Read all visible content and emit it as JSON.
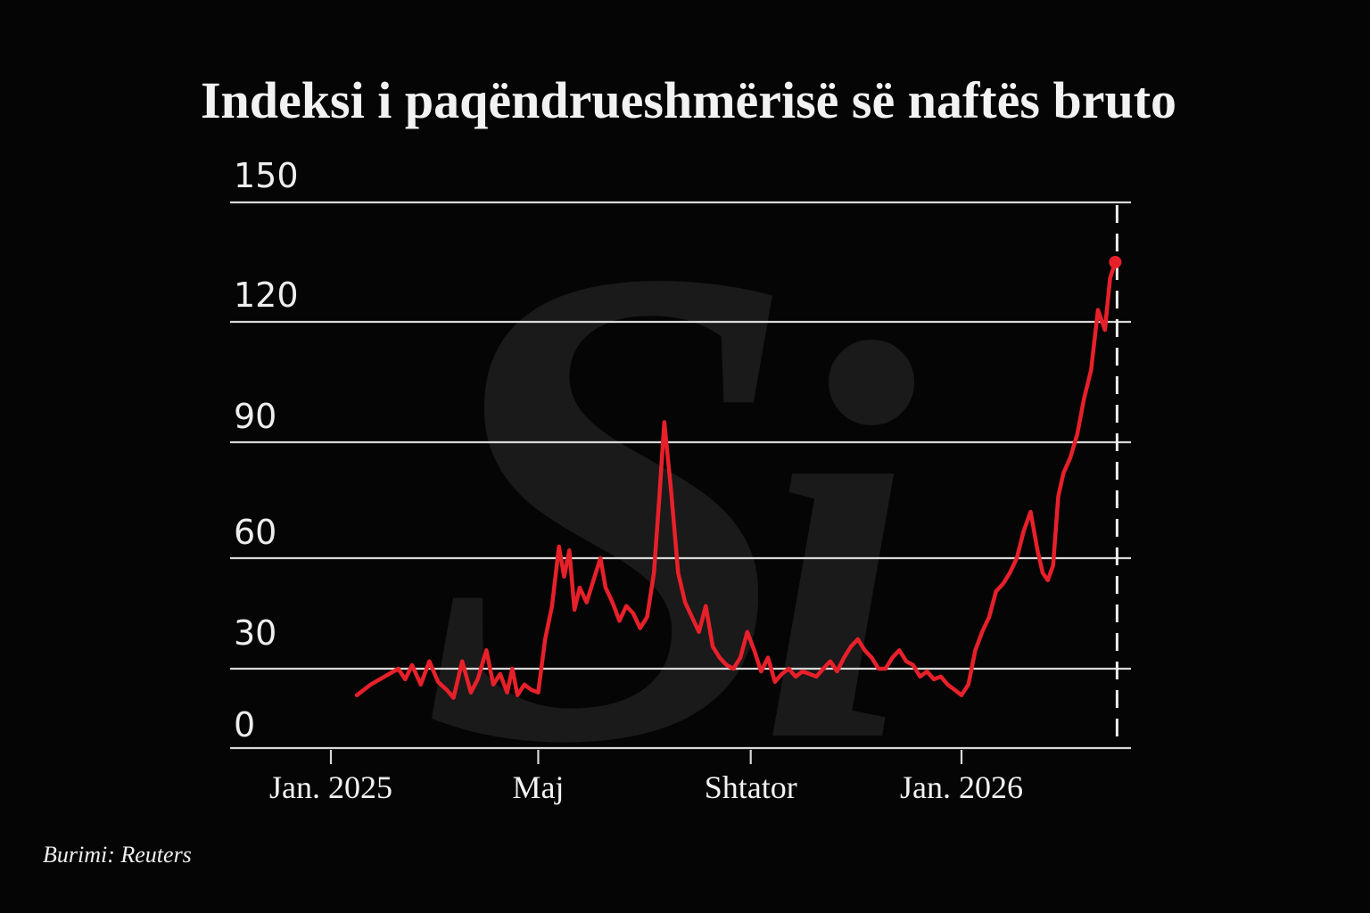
{
  "chart_data": {
    "type": "line",
    "title": "Indeksi i paqëndrueshmërisë së naftës bruto",
    "xlabel": "",
    "ylabel": "",
    "ylim": [
      0,
      150
    ],
    "yticks": [
      "150",
      "120",
      "90",
      "60",
      "30",
      "0"
    ],
    "xticks": [
      {
        "label": "Jan. 2025",
        "date": "2025-01-01"
      },
      {
        "label": "Maj",
        "date": "2025-05-01"
      },
      {
        "label": "Shtator",
        "date": "2025-09-01"
      },
      {
        "label": "Jan. 2026",
        "date": "2026-01-01"
      }
    ],
    "grid": true,
    "legend": "none",
    "line_color": "#e8202a",
    "marker_date": "2026-03-31",
    "series": [
      {
        "points": [
          [
            "2025-01-16",
            20
          ],
          [
            "2025-01-24",
            24
          ],
          [
            "2025-02-01",
            27
          ],
          [
            "2025-02-09",
            30
          ],
          [
            "2025-02-13",
            26
          ],
          [
            "2025-02-17",
            31
          ],
          [
            "2025-02-22",
            24
          ],
          [
            "2025-02-27",
            32
          ],
          [
            "2025-03-04",
            25
          ],
          [
            "2025-03-09",
            22
          ],
          [
            "2025-03-13",
            19
          ],
          [
            "2025-03-18",
            32
          ],
          [
            "2025-03-23",
            21
          ],
          [
            "2025-03-27",
            26
          ],
          [
            "2025-04-01",
            35
          ],
          [
            "2025-04-05",
            24
          ],
          [
            "2025-04-09",
            28
          ],
          [
            "2025-04-13",
            21
          ],
          [
            "2025-04-16",
            30
          ],
          [
            "2025-04-19",
            20
          ],
          [
            "2025-04-23",
            24
          ],
          [
            "2025-04-27",
            22
          ],
          [
            "2025-05-01",
            21
          ],
          [
            "2025-05-05",
            38
          ],
          [
            "2025-05-09",
            47
          ],
          [
            "2025-05-13",
            63
          ],
          [
            "2025-05-16",
            55
          ],
          [
            "2025-05-19",
            62
          ],
          [
            "2025-05-22",
            46
          ],
          [
            "2025-05-25",
            52
          ],
          [
            "2025-05-29",
            48
          ],
          [
            "2025-06-02",
            54
          ],
          [
            "2025-06-06",
            60
          ],
          [
            "2025-06-09",
            52
          ],
          [
            "2025-06-13",
            48
          ],
          [
            "2025-06-17",
            43
          ],
          [
            "2025-06-21",
            47
          ],
          [
            "2025-06-25",
            45
          ],
          [
            "2025-06-29",
            41
          ],
          [
            "2025-07-03",
            44
          ],
          [
            "2025-07-07",
            56
          ],
          [
            "2025-07-10",
            75
          ],
          [
            "2025-07-13",
            95
          ],
          [
            "2025-07-17",
            77
          ],
          [
            "2025-07-21",
            56
          ],
          [
            "2025-07-25",
            48
          ],
          [
            "2025-07-29",
            44
          ],
          [
            "2025-08-02",
            40
          ],
          [
            "2025-08-06",
            47
          ],
          [
            "2025-08-10",
            36
          ],
          [
            "2025-08-14",
            33
          ],
          [
            "2025-08-18",
            31
          ],
          [
            "2025-08-22",
            30
          ],
          [
            "2025-08-26",
            33
          ],
          [
            "2025-08-30",
            40
          ],
          [
            "2025-09-03",
            35
          ],
          [
            "2025-09-07",
            29
          ],
          [
            "2025-09-11",
            33
          ],
          [
            "2025-09-15",
            25
          ],
          [
            "2025-09-19",
            28
          ],
          [
            "2025-09-23",
            30
          ],
          [
            "2025-09-27",
            27
          ],
          [
            "2025-10-01",
            29
          ],
          [
            "2025-10-05",
            28
          ],
          [
            "2025-10-09",
            27
          ],
          [
            "2025-10-13",
            30
          ],
          [
            "2025-10-17",
            32
          ],
          [
            "2025-10-21",
            29
          ],
          [
            "2025-10-25",
            33
          ],
          [
            "2025-10-29",
            36
          ],
          [
            "2025-11-02",
            38
          ],
          [
            "2025-11-06",
            35
          ],
          [
            "2025-11-10",
            33
          ],
          [
            "2025-11-14",
            30
          ],
          [
            "2025-11-18",
            30
          ],
          [
            "2025-11-22",
            33
          ],
          [
            "2025-11-26",
            35
          ],
          [
            "2025-11-30",
            32
          ],
          [
            "2025-12-04",
            31
          ],
          [
            "2025-12-08",
            27
          ],
          [
            "2025-12-12",
            29
          ],
          [
            "2025-12-16",
            26
          ],
          [
            "2025-12-20",
            27
          ],
          [
            "2025-12-24",
            24
          ],
          [
            "2025-12-28",
            22
          ],
          [
            "2026-01-01",
            20
          ],
          [
            "2026-01-05",
            24
          ],
          [
            "2026-01-09",
            35
          ],
          [
            "2026-01-13",
            40
          ],
          [
            "2026-01-17",
            44
          ],
          [
            "2026-01-21",
            51
          ],
          [
            "2026-01-25",
            53
          ],
          [
            "2026-01-29",
            56
          ],
          [
            "2026-02-02",
            60
          ],
          [
            "2026-02-06",
            67
          ],
          [
            "2026-02-10",
            72
          ],
          [
            "2026-02-14",
            62
          ],
          [
            "2026-02-17",
            56
          ],
          [
            "2026-02-20",
            54
          ],
          [
            "2026-02-23",
            58
          ],
          [
            "2026-02-26",
            76
          ],
          [
            "2026-03-01",
            82
          ],
          [
            "2026-03-05",
            86
          ],
          [
            "2026-03-09",
            92
          ],
          [
            "2026-03-13",
            101
          ],
          [
            "2026-03-17",
            108
          ],
          [
            "2026-03-21",
            123
          ],
          [
            "2026-03-25",
            118
          ],
          [
            "2026-03-28",
            131
          ],
          [
            "2026-03-31",
            135
          ]
        ]
      }
    ]
  },
  "watermark": "Si",
  "source": "Burimi: Reuters"
}
